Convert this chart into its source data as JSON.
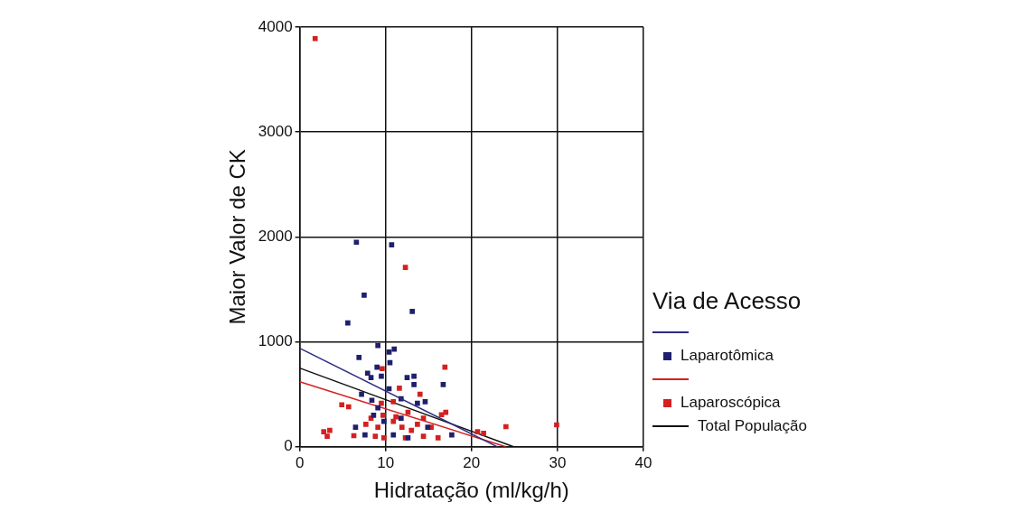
{
  "chart_data": {
    "type": "scatter",
    "xlabel": "Hidratação (ml/kg/h)",
    "ylabel": "Maior Valor de CK",
    "legend_title": "Via de Acesso",
    "legend": "right",
    "grid": true,
    "marker": "square",
    "xlim": [
      0,
      40
    ],
    "xticks": [
      0,
      10,
      20,
      30,
      40
    ],
    "ylim": [
      0,
      4000
    ],
    "yticks": [
      0,
      1000,
      2000,
      3000,
      4000
    ],
    "series": [
      {
        "type": "line",
        "marker": "none",
        "color": "#2b2b80",
        "x": [
          0,
          23
        ],
        "values": [
          940,
          0
        ]
      },
      {
        "type": "scatter",
        "name": "Laparotômica",
        "color": "#1f1f6e",
        "x": [
          6.6,
          10.7,
          7.5,
          5.6,
          13.1,
          9.1,
          10.4,
          11.0,
          6.9,
          10.5,
          9.0,
          7.9,
          8.3,
          9.5,
          12.5,
          13.3,
          13.3,
          16.7,
          10.4,
          7.2,
          11.8,
          13.7,
          14.6,
          8.4,
          9.1,
          8.6,
          11.8,
          6.5,
          7.6,
          10.9,
          12.6,
          17.7,
          14.9,
          9.8
        ],
        "values": [
          1950,
          1925,
          1445,
          1180,
          1290,
          966,
          903,
          931,
          851,
          802,
          759,
          702,
          660,
          673,
          660,
          673,
          593,
          593,
          553,
          501,
          458,
          415,
          430,
          444,
          372,
          301,
          272,
          187,
          114,
          114,
          86,
          114,
          187,
          243
        ]
      },
      {
        "type": "line",
        "marker": "none",
        "color": "#d42020",
        "x": [
          0,
          24
        ],
        "values": [
          620,
          0
        ]
      },
      {
        "type": "scatter",
        "name": "Laparoscópica",
        "color": "#d42020",
        "x": [
          1.8,
          12.3,
          9.6,
          16.9,
          11.6,
          14.0,
          4.9,
          5.7,
          10.9,
          9.5,
          17.0,
          16.5,
          11.2,
          12.6,
          9.7,
          7.7,
          9.1,
          11.9,
          13.7,
          15.3,
          2.8,
          3.5,
          3.2,
          6.3,
          8.8,
          9.8,
          12.3,
          13.0,
          14.4,
          16.1,
          20.7,
          21.4,
          24.0,
          29.9,
          10.9,
          14.4,
          8.3
        ],
        "values": [
          3890,
          1710,
          745,
          759,
          559,
          501,
          401,
          381,
          430,
          415,
          329,
          306,
          286,
          329,
          301,
          215,
          187,
          187,
          215,
          187,
          144,
          157,
          101,
          106,
          101,
          86,
          86,
          157,
          101,
          86,
          144,
          129,
          192,
          209,
          243,
          272,
          272
        ]
      },
      {
        "type": "line",
        "marker": "none",
        "name": "Total População",
        "color": "#111111",
        "x": [
          0,
          24.9
        ],
        "values": [
          750,
          0
        ]
      }
    ]
  }
}
